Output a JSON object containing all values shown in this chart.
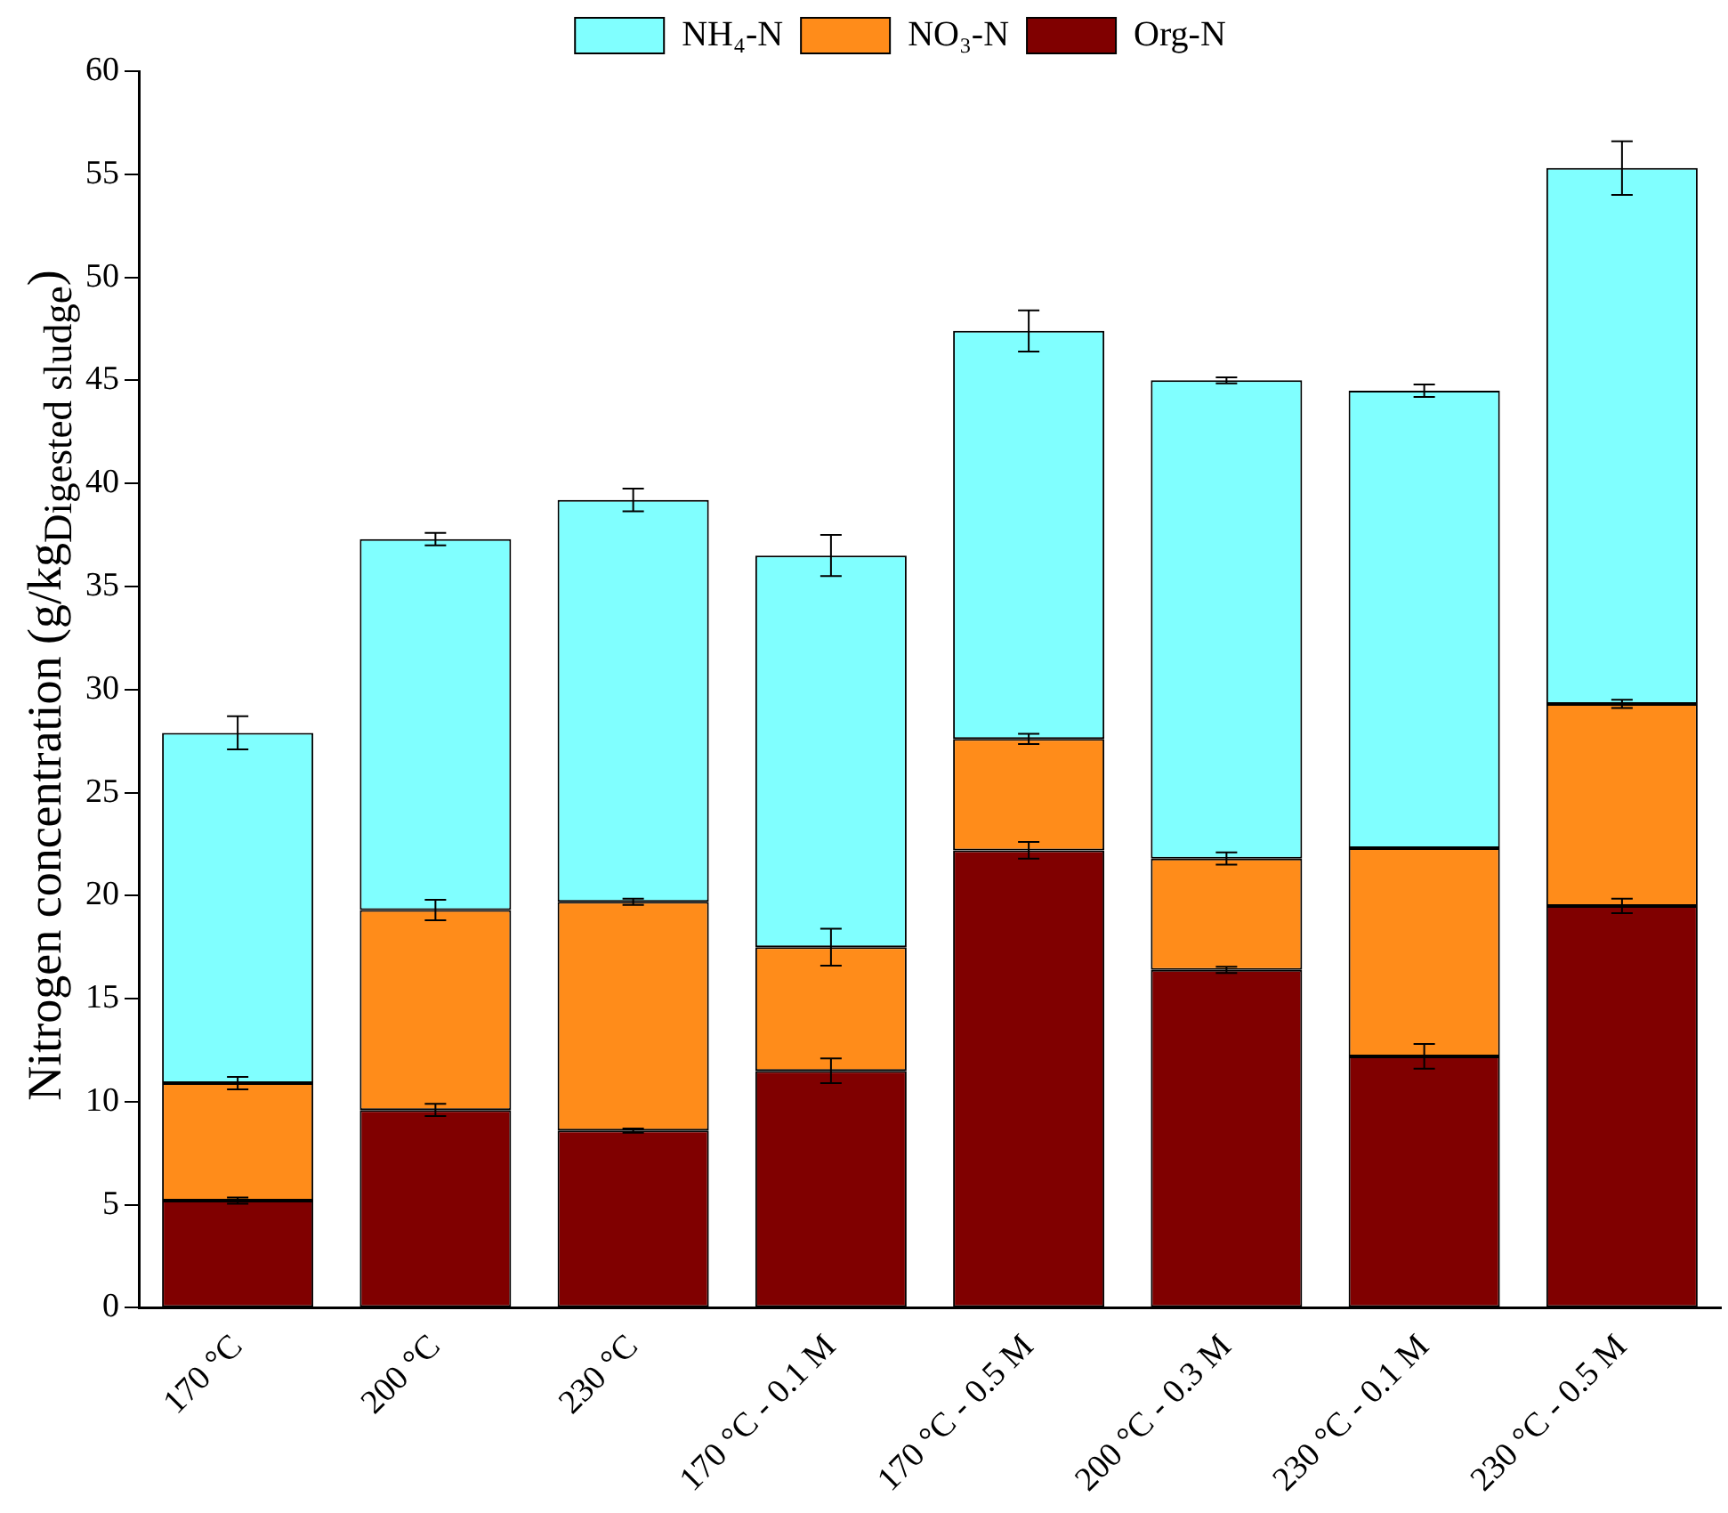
{
  "chart_data": {
    "type": "bar",
    "stacked": true,
    "ylabel": "Nitrogen concentration (g/kg$_{Digested sludge}$)",
    "categories": [
      "170 °C",
      "200 °C",
      "230 °C",
      "170 °C - 0.1 M",
      "170 °C - 0.5 M",
      "200 °C - 0.3 M",
      "230 °C - 0.1 M",
      "230 °C - 0.5 M"
    ],
    "series": [
      {
        "name": "Org-N",
        "color": "#800000",
        "values": [
          5.2,
          9.6,
          8.6,
          11.5,
          22.2,
          16.4,
          12.2,
          19.5
        ],
        "errors": [
          0.15,
          0.3,
          0.1,
          0.6,
          0.4,
          0.15,
          0.6,
          0.35
        ]
      },
      {
        "name": "NO₃-N",
        "color": "#ff8c1a",
        "values": [
          5.7,
          9.7,
          11.1,
          6.0,
          5.4,
          5.4,
          10.1,
          9.8
        ],
        "errors": [
          0.3,
          0.5,
          0.15,
          0.9,
          0.25,
          0.3,
          null,
          0.2
        ]
      },
      {
        "name": "NH₄-N",
        "color": "#80ffff",
        "values": [
          17.0,
          18.0,
          19.5,
          19.0,
          19.8,
          23.2,
          22.2,
          26.0
        ],
        "errors": [
          0.8,
          0.3,
          0.55,
          1.0,
          1.0,
          0.15,
          0.3,
          1.3
        ]
      }
    ],
    "ylim": [
      0,
      60
    ],
    "yticks": [
      0,
      5,
      10,
      15,
      20,
      25,
      30,
      35,
      40,
      45,
      50,
      55,
      60
    ],
    "grid": false,
    "legend": "top"
  }
}
